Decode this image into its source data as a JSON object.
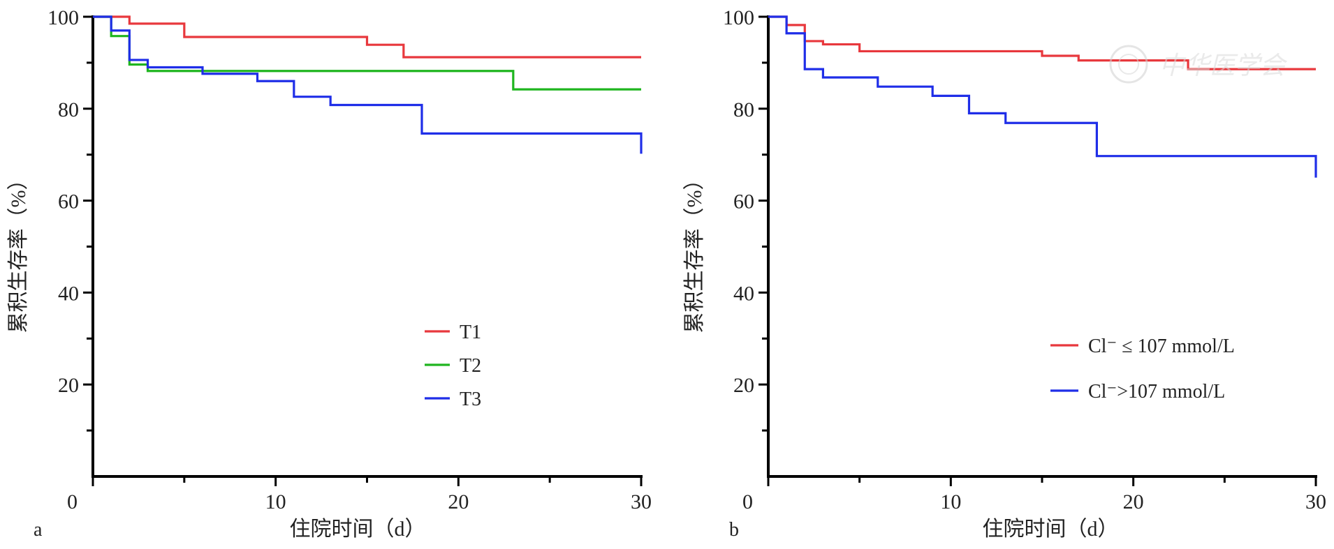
{
  "chart_data": [
    {
      "panel": "a",
      "type": "line",
      "step": true,
      "xlabel": "住院时间（d）",
      "ylabel": "累积生存率（%）",
      "xlim": [
        0,
        30
      ],
      "ylim": [
        0,
        100
      ],
      "xticks": [
        "0",
        "10",
        "20",
        "30"
      ],
      "yticks": [
        "20",
        "40",
        "60",
        "80",
        "100"
      ],
      "grid": false,
      "legend_position": "lower-center",
      "series": [
        {
          "name": "T1",
          "color": "#e8383d",
          "x": [
            0,
            2,
            5,
            15,
            17,
            30
          ],
          "y": [
            100,
            98.5,
            95.6,
            93.9,
            91.2,
            91.2
          ]
        },
        {
          "name": "T2",
          "color": "#1fb51f",
          "x": [
            0,
            1,
            2,
            3,
            23,
            30
          ],
          "y": [
            100,
            95.8,
            89.6,
            88.2,
            84.2,
            84.2
          ]
        },
        {
          "name": "T3",
          "color": "#1f2ee8",
          "x": [
            0,
            1,
            2,
            3,
            6,
            9,
            11,
            13,
            18,
            30
          ],
          "y": [
            100,
            97.0,
            90.6,
            89.0,
            87.6,
            86.0,
            82.6,
            80.8,
            74.6,
            70.2
          ]
        }
      ]
    },
    {
      "panel": "b",
      "type": "line",
      "step": true,
      "xlabel": "住院时间（d）",
      "ylabel": "累积生存率（%）",
      "xlim": [
        0,
        30
      ],
      "ylim": [
        0,
        100
      ],
      "xticks": [
        "0",
        "10",
        "20",
        "30"
      ],
      "yticks": [
        "20",
        "40",
        "60",
        "80",
        "100"
      ],
      "grid": false,
      "legend_position": "lower-right",
      "series": [
        {
          "name": "Cl⁻ ≤ 107 mmol/L",
          "color": "#e8383d",
          "x": [
            0,
            1,
            2,
            3,
            5,
            15,
            17,
            23,
            30
          ],
          "y": [
            100,
            98.2,
            94.7,
            94.0,
            92.5,
            91.5,
            90.5,
            88.6,
            88.6
          ]
        },
        {
          "name": "Cl⁻>107 mmol/L",
          "color": "#1f2ee8",
          "x": [
            0,
            1,
            2,
            3,
            6,
            9,
            11,
            13,
            18,
            30
          ],
          "y": [
            100,
            96.4,
            88.6,
            86.8,
            84.8,
            82.8,
            79.0,
            76.9,
            69.7,
            65.0
          ]
        }
      ]
    }
  ],
  "watermark": {
    "text": "中华医学会"
  }
}
